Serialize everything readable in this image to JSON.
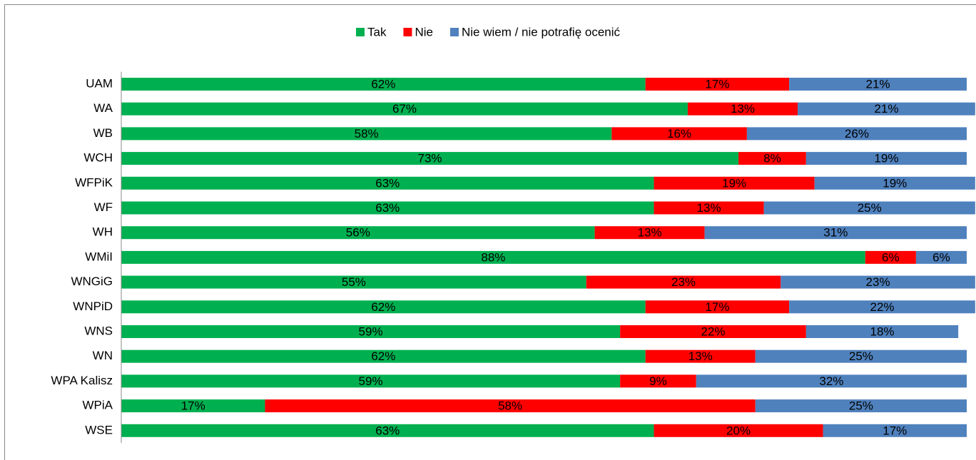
{
  "chart_data": {
    "type": "stacked_barh",
    "categories": [
      "UAM",
      "WA",
      "WB",
      "WCH",
      "WFPiK",
      "WF",
      "WH",
      "WMiI",
      "WNGiG",
      "WNPiD",
      "WNS",
      "WN",
      "WPA Kalisz",
      "WPiA",
      "WSE"
    ],
    "series": [
      {
        "name": "Tak",
        "color": "#00b050",
        "values": [
          62,
          67,
          58,
          73,
          63,
          63,
          56,
          88,
          55,
          62,
          59,
          62,
          59,
          17,
          63
        ],
        "value_labels": [
          "62%",
          "67%",
          "58%",
          "73%",
          "63%",
          "63%",
          "56%",
          "88%",
          "55%",
          "62%",
          "59%",
          "62%",
          "59%",
          "17%",
          "63%"
        ]
      },
      {
        "name": "Nie",
        "color": "#ff0000",
        "values": [
          17,
          13,
          16,
          8,
          19,
          13,
          13,
          6,
          23,
          17,
          22,
          13,
          9,
          58,
          20
        ],
        "value_labels": [
          "17%",
          "13%",
          "16%",
          "8%",
          "19%",
          "13%",
          "13%",
          "6%",
          "23%",
          "17%",
          "22%",
          "13%",
          "9%",
          "58%",
          "20%"
        ]
      },
      {
        "name": "Nie wiem / nie potrafię ocenić",
        "color": "#4f81bd",
        "values": [
          21,
          21,
          26,
          19,
          19,
          25,
          31,
          6,
          23,
          22,
          18,
          25,
          32,
          25,
          17
        ],
        "value_labels": [
          "21%",
          "21%",
          "26%",
          "19%",
          "19%",
          "25%",
          "31%",
          "6%",
          "23%",
          "22%",
          "18%",
          "25%",
          "32%",
          "25%",
          "17%"
        ]
      }
    ],
    "xlim": [
      0,
      100
    ],
    "legend": "top"
  }
}
